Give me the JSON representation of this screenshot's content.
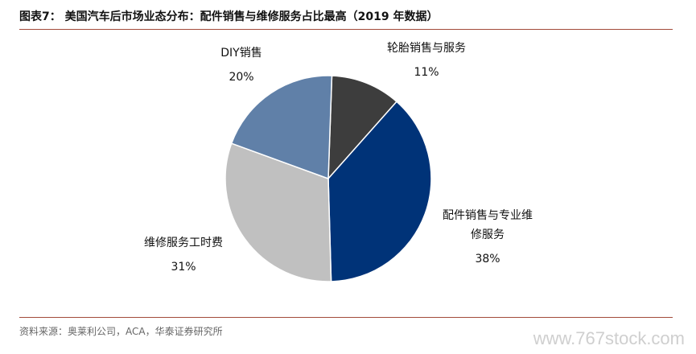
{
  "title": "图表7：  美国汽车后市场业态分布：配件销售与维修服务占比最高（2019 年数据）",
  "source": "资料来源：奥莱利公司，ACA，华泰证券研究所",
  "watermark": "www.767stock.com",
  "chart_data": {
    "type": "pie",
    "title": "图表7：  美国汽车后市场业态分布：配件销售与维修服务占比最高（2019 年数据）",
    "slices": [
      {
        "label_lines": [
          "轮胎销售与服务"
        ],
        "label": "轮胎销售与服务",
        "value": 11,
        "display": "11%",
        "color": "#3d3d3d"
      },
      {
        "label_lines": [
          "配件销售与专业维",
          "修服务"
        ],
        "label": "配件销售与专业维修服务",
        "value": 38,
        "display": "38%",
        "color": "#003378"
      },
      {
        "label_lines": [
          "维修服务工时费"
        ],
        "label": "维修服务工时费",
        "value": 31,
        "display": "31%",
        "color": "#c0c0c0"
      },
      {
        "label_lines": [
          "DIY销售"
        ],
        "label": "DIY销售",
        "value": 20,
        "display": "20%",
        "color": "#6080a8"
      }
    ]
  }
}
